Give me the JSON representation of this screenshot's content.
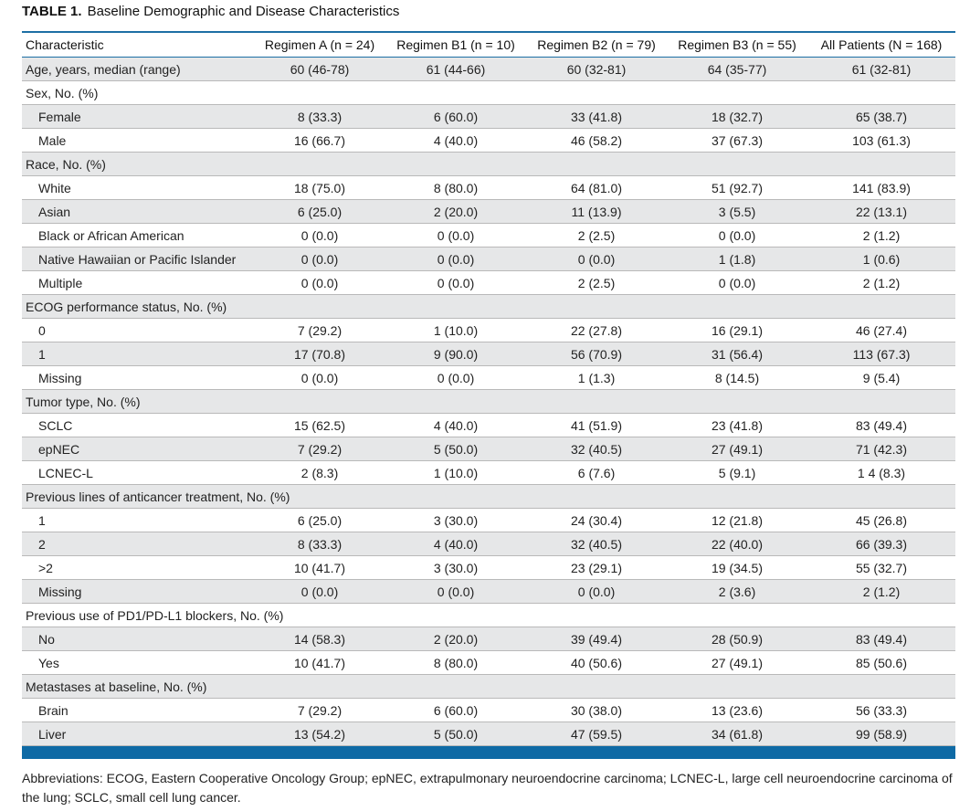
{
  "caption": {
    "label": "TABLE 1.",
    "title": "Baseline Demographic and Disease Characteristics"
  },
  "table": {
    "headers": [
      "Characteristic",
      "Regimen A (n = 24)",
      "Regimen B1 (n = 10)",
      "Regimen B2 (n = 79)",
      "Regimen B3 (n = 55)",
      "All Patients (N = 168)"
    ],
    "rows": [
      {
        "label": "Age, years, median (range)",
        "indent": false,
        "cells": [
          "60 (46-78)",
          "61 (44-66)",
          "60 (32-81)",
          "64 (35-77)",
          "61 (32-81)"
        ]
      },
      {
        "label": "Sex, No. (%)",
        "indent": false,
        "cells": [
          "",
          "",
          "",
          "",
          ""
        ]
      },
      {
        "label": "Female",
        "indent": true,
        "cells": [
          "8 (33.3)",
          "6 (60.0)",
          "33 (41.8)",
          "18 (32.7)",
          "65 (38.7)"
        ]
      },
      {
        "label": "Male",
        "indent": true,
        "cells": [
          "16 (66.7)",
          "4 (40.0)",
          "46 (58.2)",
          "37 (67.3)",
          "103 (61.3)"
        ]
      },
      {
        "label": "Race, No. (%)",
        "indent": false,
        "cells": [
          "",
          "",
          "",
          "",
          ""
        ]
      },
      {
        "label": "White",
        "indent": true,
        "cells": [
          "18 (75.0)",
          "8 (80.0)",
          "64 (81.0)",
          "51 (92.7)",
          "141 (83.9)"
        ]
      },
      {
        "label": "Asian",
        "indent": true,
        "cells": [
          "6 (25.0)",
          "2 (20.0)",
          "11 (13.9)",
          "3 (5.5)",
          "22 (13.1)"
        ]
      },
      {
        "label": "Black or African American",
        "indent": true,
        "cells": [
          "0 (0.0)",
          "0 (0.0)",
          "2 (2.5)",
          "0 (0.0)",
          "2 (1.2)"
        ]
      },
      {
        "label": "Native Hawaiian or Pacific Islander",
        "indent": true,
        "cells": [
          "0 (0.0)",
          "0 (0.0)",
          "0 (0.0)",
          "1 (1.8)",
          "1 (0.6)"
        ]
      },
      {
        "label": "Multiple",
        "indent": true,
        "cells": [
          "0 (0.0)",
          "0 (0.0)",
          "2 (2.5)",
          "0 (0.0)",
          "2 (1.2)"
        ]
      },
      {
        "label": "ECOG performance status, No. (%)",
        "indent": false,
        "cells": [
          "",
          "",
          "",
          "",
          ""
        ]
      },
      {
        "label": "0",
        "indent": true,
        "cells": [
          "7 (29.2)",
          "1 (10.0)",
          "22 (27.8)",
          "16 (29.1)",
          "46 (27.4)"
        ]
      },
      {
        "label": "1",
        "indent": true,
        "cells": [
          "17 (70.8)",
          "9 (90.0)",
          "56 (70.9)",
          "31 (56.4)",
          "113 (67.3)"
        ]
      },
      {
        "label": "Missing",
        "indent": true,
        "cells": [
          "0 (0.0)",
          "0 (0.0)",
          "1 (1.3)",
          "8 (14.5)",
          "9 (5.4)"
        ]
      },
      {
        "label": "Tumor type, No. (%)",
        "indent": false,
        "cells": [
          "",
          "",
          "",
          "",
          ""
        ]
      },
      {
        "label": "SCLC",
        "indent": true,
        "cells": [
          "15 (62.5)",
          "4 (40.0)",
          "41 (51.9)",
          "23 (41.8)",
          "83 (49.4)"
        ]
      },
      {
        "label": "epNEC",
        "indent": true,
        "cells": [
          "7 (29.2)",
          "5 (50.0)",
          "32 (40.5)",
          "27 (49.1)",
          "71 (42.3)"
        ]
      },
      {
        "label": "LCNEC-L",
        "indent": true,
        "cells": [
          "2 (8.3)",
          "1 (10.0)",
          "6 (7.6)",
          "5 (9.1)",
          "1 4 (8.3)"
        ]
      },
      {
        "label": "Previous lines of anticancer treatment, No. (%)",
        "indent": false,
        "cells": [
          "",
          "",
          "",
          "",
          ""
        ]
      },
      {
        "label": "1",
        "indent": true,
        "cells": [
          "6 (25.0)",
          "3 (30.0)",
          "24 (30.4)",
          "12 (21.8)",
          "45 (26.8)"
        ]
      },
      {
        "label": "2",
        "indent": true,
        "cells": [
          "8 (33.3)",
          "4 (40.0)",
          "32 (40.5)",
          "22 (40.0)",
          "66 (39.3)"
        ]
      },
      {
        "label": ">2",
        "indent": true,
        "cells": [
          "10 (41.7)",
          "3 (30.0)",
          "23 (29.1)",
          "19 (34.5)",
          "55 (32.7)"
        ]
      },
      {
        "label": "Missing",
        "indent": true,
        "cells": [
          "0 (0.0)",
          "0 (0.0)",
          "0 (0.0)",
          "2 (3.6)",
          "2 (1.2)"
        ]
      },
      {
        "label": "Previous use of PD1/PD-L1 blockers, No. (%)",
        "indent": false,
        "cells": [
          "",
          "",
          "",
          "",
          ""
        ]
      },
      {
        "label": "No",
        "indent": true,
        "cells": [
          "14 (58.3)",
          "2 (20.0)",
          "39 (49.4)",
          "28 (50.9)",
          "83 (49.4)"
        ]
      },
      {
        "label": "Yes",
        "indent": true,
        "cells": [
          "10 (41.7)",
          "8 (80.0)",
          "40 (50.6)",
          "27 (49.1)",
          "85 (50.6)"
        ]
      },
      {
        "label": "Metastases at baseline, No. (%)",
        "indent": false,
        "cells": [
          "",
          "",
          "",
          "",
          ""
        ]
      },
      {
        "label": "Brain",
        "indent": true,
        "cells": [
          "7 (29.2)",
          "6 (60.0)",
          "30 (38.0)",
          "13 (23.6)",
          "56 (33.3)"
        ]
      },
      {
        "label": "Liver",
        "indent": true,
        "cells": [
          "13 (54.2)",
          "5 (50.0)",
          "47 (59.5)",
          "34 (61.8)",
          "99 (58.9)"
        ]
      }
    ]
  },
  "footnote": "Abbreviations: ECOG, Eastern Cooperative Oncology Group; epNEC, extrapulmonary neuroendocrine carcinoma; LCNEC-L, large cell neuroendocrine carcinoma of the lung; SCLC, small cell lung cancer.",
  "colors": {
    "accent": "#0e6aa5",
    "shade": "#e6e7e8",
    "rule": "#b9b9b9"
  }
}
